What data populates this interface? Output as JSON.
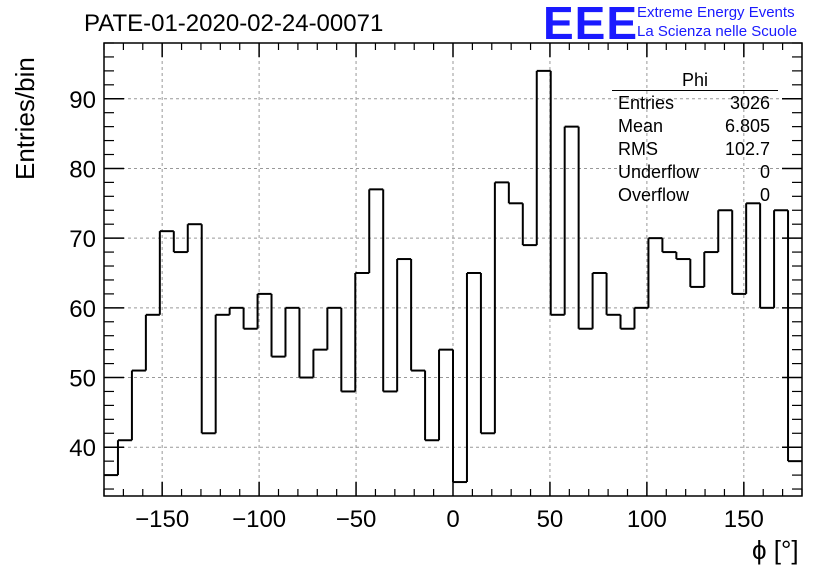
{
  "title": "PATE-01-2020-02-24-00071",
  "logo": {
    "mark": "EEE",
    "line1": "Extreme Energy Events",
    "line2": "La Scienza nelle Scuole"
  },
  "stats": {
    "name": "Phi",
    "rows": [
      {
        "label": "Entries",
        "value": "3026"
      },
      {
        "label": "Mean",
        "value": "6.805"
      },
      {
        "label": "RMS",
        "value": "102.7"
      },
      {
        "label": "Underflow",
        "value": "0"
      },
      {
        "label": "Overflow",
        "value": "0"
      }
    ]
  },
  "chart_data": {
    "type": "histogram",
    "xlabel": "ϕ [°]",
    "ylabel": "Entries/bin",
    "xlim": [
      -180,
      180
    ],
    "ylim": [
      33,
      98
    ],
    "xticks": [
      -150,
      -100,
      -50,
      0,
      50,
      100,
      150
    ],
    "xtick_labels": [
      "−150",
      "−100",
      "−50",
      "0",
      "50",
      "100",
      "150"
    ],
    "yticks": [
      40,
      50,
      60,
      70,
      80,
      90
    ],
    "grid": true,
    "bin_edges_start": -180,
    "bin_width": 7.2,
    "values": [
      36,
      41,
      51,
      59,
      71,
      68,
      72,
      42,
      59,
      60,
      57,
      62,
      53,
      60,
      50,
      54,
      60,
      48,
      65,
      77,
      48,
      67,
      51,
      41,
      54,
      35,
      65,
      42,
      78,
      75,
      69,
      94,
      59,
      86,
      57,
      65,
      59,
      57,
      60,
      70,
      68,
      67,
      63,
      68,
      74,
      62,
      75,
      60,
      74,
      38
    ]
  }
}
